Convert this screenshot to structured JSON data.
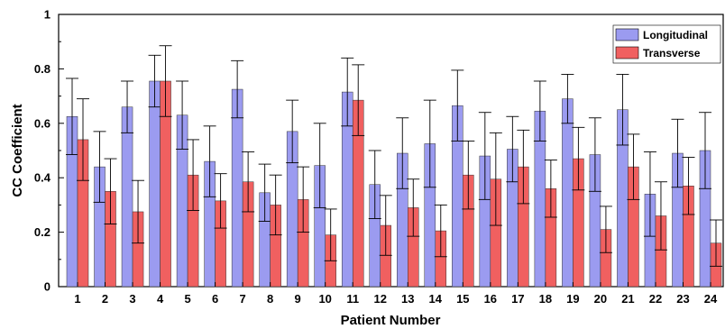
{
  "chart_data": {
    "type": "bar",
    "title": "",
    "xlabel": "Patient Number",
    "ylabel": "CC Coefficient",
    "ylim": [
      0,
      1
    ],
    "yticks": [
      0,
      0.2,
      0.4,
      0.6,
      0.8,
      1
    ],
    "ytick_labels": [
      "0",
      "0.2",
      "0.4",
      "0.6",
      "0.8",
      "1"
    ],
    "categories": [
      "1",
      "2",
      "3",
      "4",
      "5",
      "6",
      "7",
      "8",
      "9",
      "10",
      "11",
      "12",
      "13",
      "14",
      "15",
      "16",
      "17",
      "18",
      "19",
      "20",
      "21",
      "22",
      "23",
      "24"
    ],
    "legend_position": "top-right",
    "grid": false,
    "error_bars": true,
    "series": [
      {
        "name": "Longitudinal",
        "color": "#9b9bf0",
        "values": [
          0.625,
          0.44,
          0.66,
          0.755,
          0.63,
          0.46,
          0.725,
          0.345,
          0.57,
          0.445,
          0.715,
          0.375,
          0.49,
          0.525,
          0.665,
          0.48,
          0.505,
          0.645,
          0.69,
          0.485,
          0.65,
          0.34,
          0.49,
          0.5
        ],
        "errors": [
          0.14,
          0.13,
          0.095,
          0.095,
          0.125,
          0.13,
          0.105,
          0.105,
          0.115,
          0.155,
          0.125,
          0.125,
          0.13,
          0.16,
          0.13,
          0.16,
          0.12,
          0.11,
          0.09,
          0.135,
          0.13,
          0.155,
          0.125,
          0.14
        ]
      },
      {
        "name": "Transverse",
        "color": "#f06060",
        "values": [
          0.54,
          0.35,
          0.275,
          0.755,
          0.41,
          0.315,
          0.385,
          0.3,
          0.32,
          0.19,
          0.685,
          0.225,
          0.29,
          0.205,
          0.41,
          0.395,
          0.44,
          0.36,
          0.47,
          0.21,
          0.44,
          0.26,
          0.37,
          0.16
        ],
        "errors": [
          0.15,
          0.12,
          0.115,
          0.13,
          0.13,
          0.1,
          0.11,
          0.11,
          0.12,
          0.095,
          0.13,
          0.11,
          0.105,
          0.095,
          0.125,
          0.17,
          0.135,
          0.105,
          0.115,
          0.085,
          0.12,
          0.125,
          0.105,
          0.085
        ]
      }
    ]
  }
}
